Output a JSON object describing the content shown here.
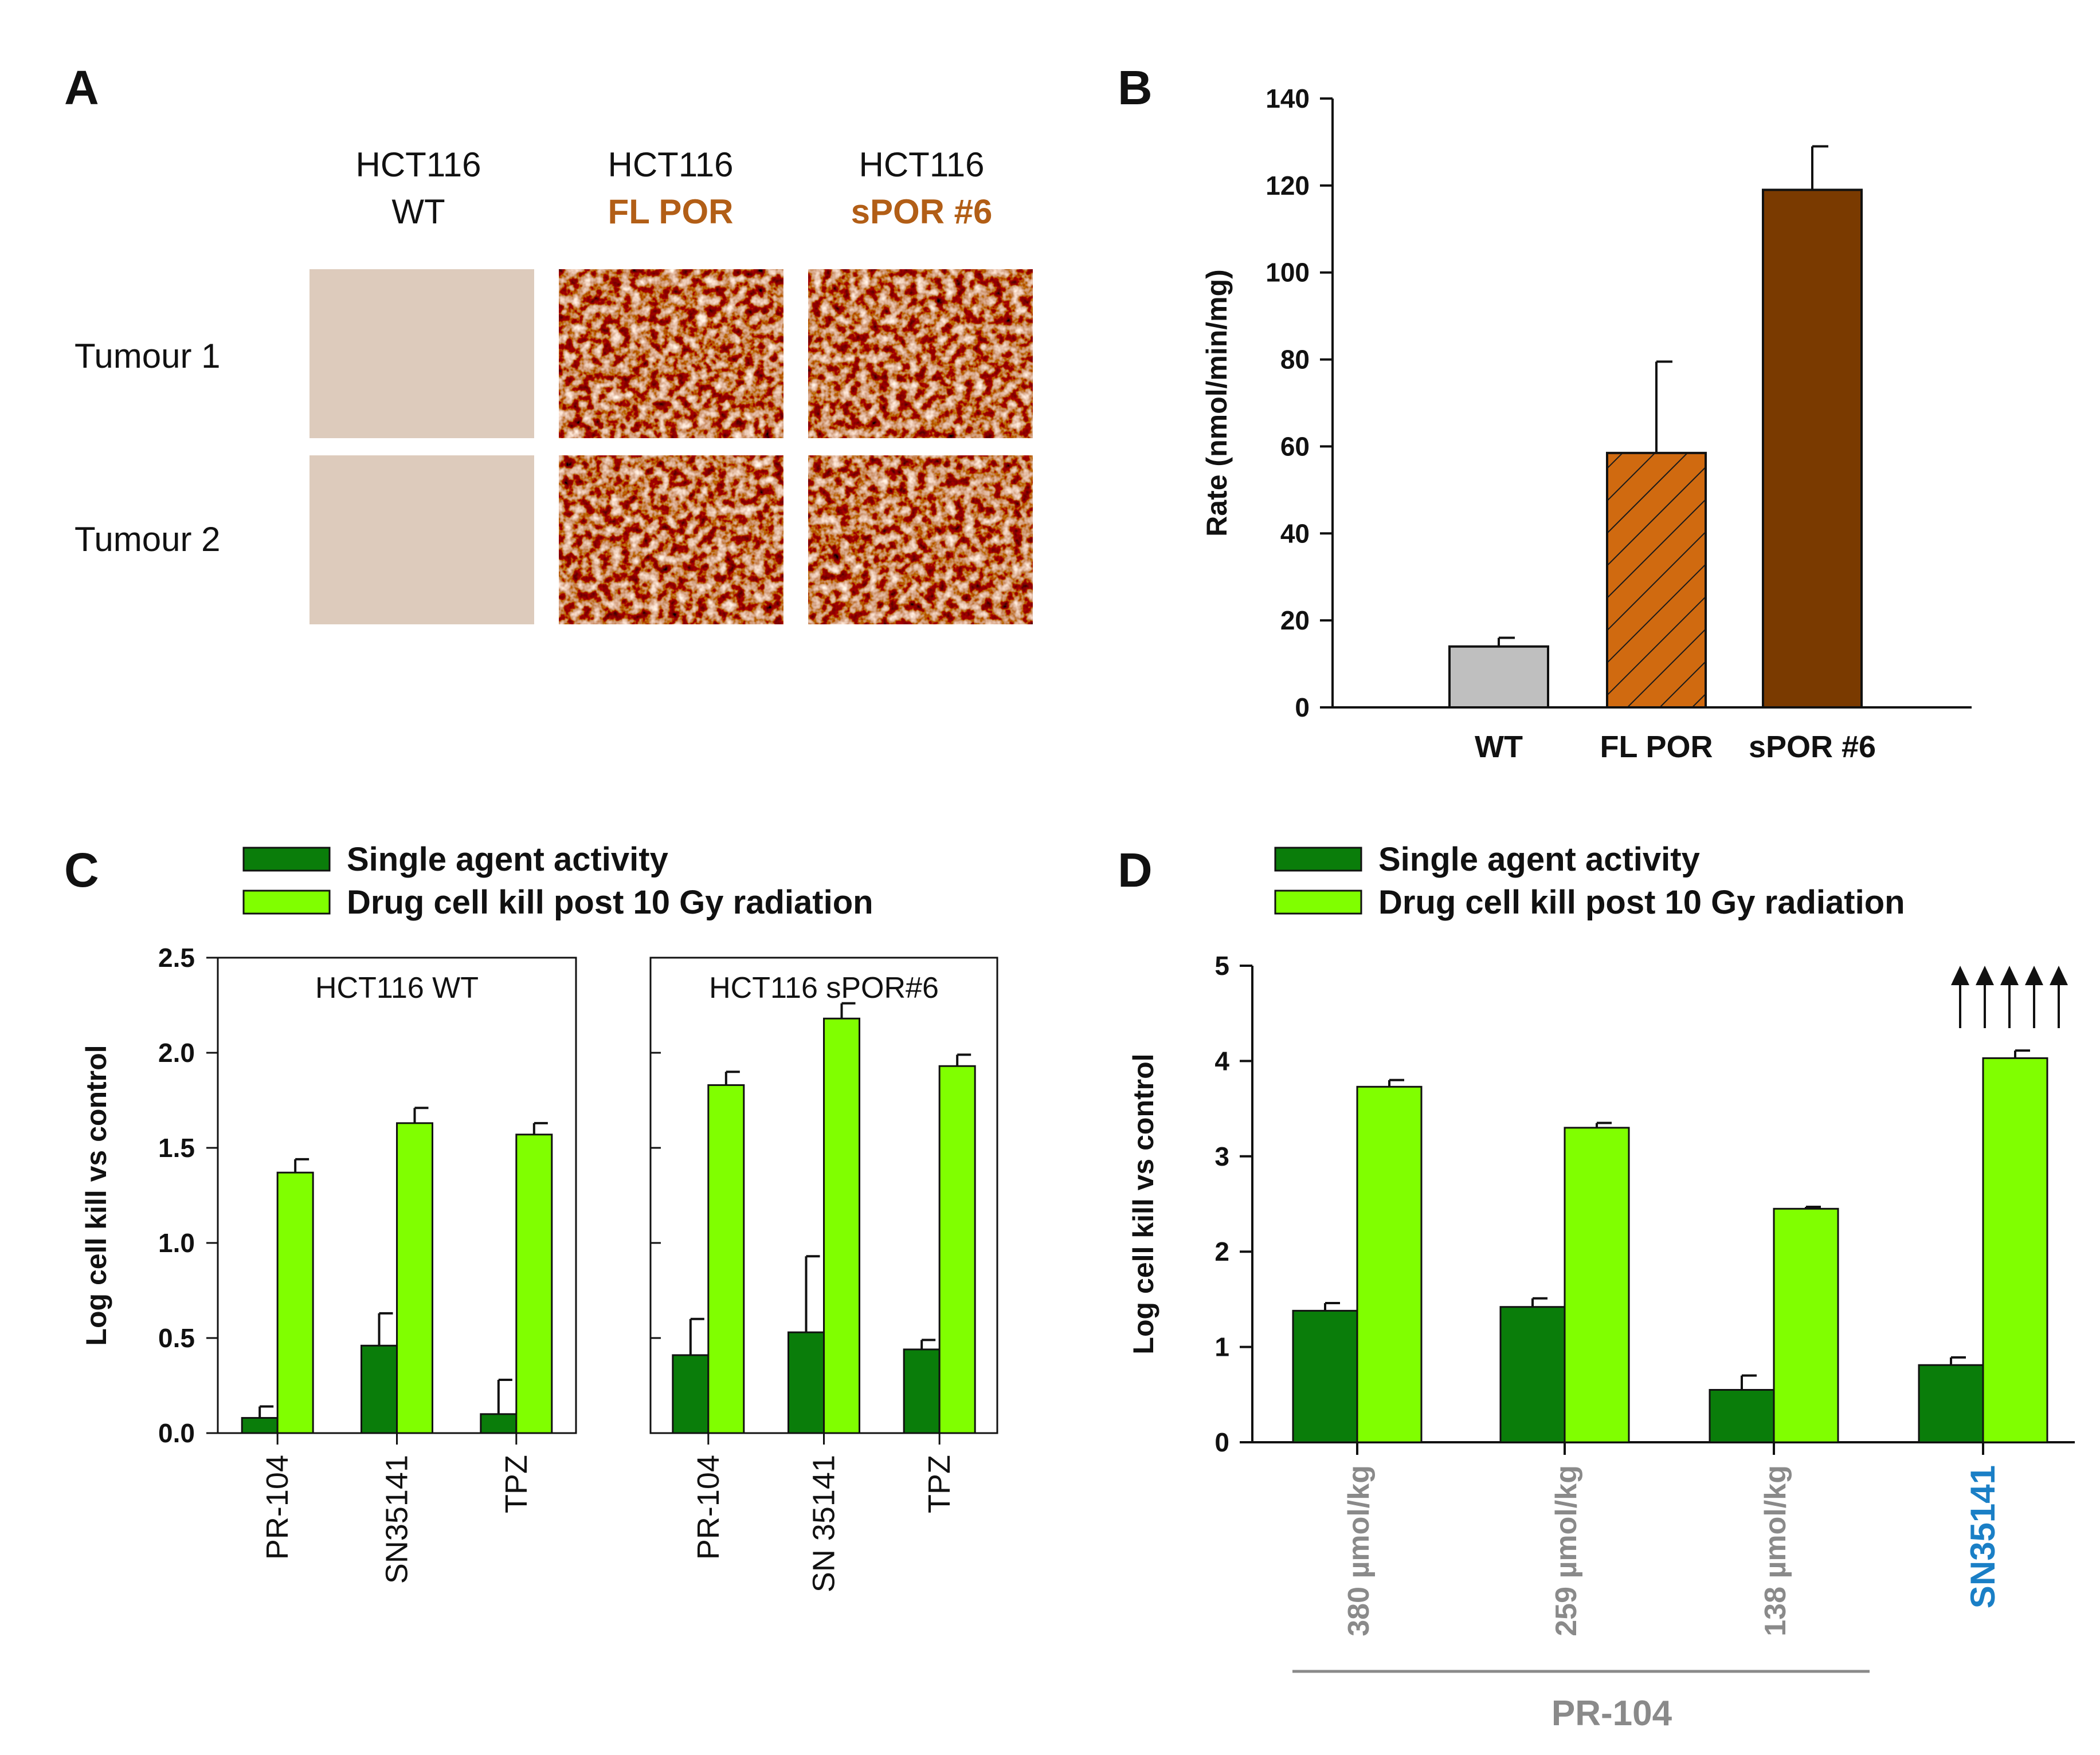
{
  "panel_letters": [
    "A",
    "B",
    "C",
    "D"
  ],
  "colors": {
    "dark_green": "#0a7d0a",
    "light_green": "#80ff00",
    "brown": "#b25e16",
    "dark_brown": "#7a3a00",
    "grey_bar": "#bfbfbf",
    "grey_text": "#8a8a8a",
    "blue_text": "#1a7fc6",
    "orange_bar": "#d06a10"
  },
  "panel_a": {
    "headers": [
      {
        "line1": "HCT116",
        "line2": "WT",
        "color": "#111111"
      },
      {
        "line1": "HCT116",
        "line2": "FL POR",
        "color": "#b25e16"
      },
      {
        "line1": "HCT116",
        "line2": "sPOR #6",
        "color": "#b25e16"
      }
    ],
    "rows": [
      "Tumour 1",
      "Tumour 2"
    ]
  },
  "chart_data": [
    {
      "panel": "B",
      "type": "bar",
      "categories": [
        "WT",
        "FL POR",
        "sPOR #6"
      ],
      "values": [
        14,
        58.5,
        119
      ],
      "errors": [
        2,
        21,
        10
      ],
      "ylabel": "Rate (nmol/min/mg)",
      "xlabel": "",
      "ylim": [
        0,
        140
      ],
      "yticks": [
        "0",
        "20",
        "40",
        "60",
        "80",
        "100",
        "120",
        "140"
      ]
    },
    {
      "panel": "C",
      "type": "bar",
      "ylabel": "Log cell kill vs control",
      "ylim": [
        0,
        2.5
      ],
      "yticks": [
        "0.0",
        "0.5",
        "1.0",
        "1.5",
        "2.0",
        "2.5"
      ],
      "legend": [
        "Single agent activity",
        "Drug cell kill post 10 Gy radiation"
      ],
      "subplots": [
        {
          "title": "HCT116 WT",
          "categories": [
            "PR-104",
            "SN35141",
            "TPZ"
          ],
          "series": [
            {
              "name": "Single agent activity",
              "values": [
                0.08,
                0.46,
                0.1
              ],
              "errors": [
                0.06,
                0.17,
                0.18
              ]
            },
            {
              "name": "Drug cell kill post 10 Gy radiation",
              "values": [
                1.37,
                1.63,
                1.57
              ],
              "errors": [
                0.07,
                0.08,
                0.06
              ]
            }
          ]
        },
        {
          "title": "HCT116 sPOR#6",
          "categories": [
            "PR-104",
            "SN 35141",
            "TPZ"
          ],
          "series": [
            {
              "name": "Single agent activity",
              "values": [
                0.41,
                0.53,
                0.44
              ],
              "errors": [
                0.19,
                0.4,
                0.05
              ]
            },
            {
              "name": "Drug cell kill post 10 Gy radiation",
              "values": [
                1.83,
                2.18,
                1.93
              ],
              "errors": [
                0.07,
                0.08,
                0.06
              ]
            }
          ]
        }
      ]
    },
    {
      "panel": "D",
      "type": "bar",
      "ylabel": "Log cell kill vs control",
      "ylim": [
        0,
        5
      ],
      "yticks": [
        "0",
        "1",
        "2",
        "3",
        "4",
        "5"
      ],
      "legend": [
        "Single agent activity",
        "Drug cell kill post 10 Gy radiation"
      ],
      "categories": [
        "380 µmol/kg",
        "259 µmol/kg",
        "138 µmol/kg",
        "SN35141"
      ],
      "group_label": "PR-104",
      "arrow_count": 5,
      "series": [
        {
          "name": "Single agent activity",
          "values": [
            1.38,
            1.42,
            0.55,
            0.81
          ],
          "errors": [
            0.08,
            0.09,
            0.15,
            0.08
          ]
        },
        {
          "name": "Drug cell kill post 10 Gy radiation",
          "values": [
            3.73,
            3.3,
            2.45,
            4.03
          ],
          "errors": [
            0.07,
            0.05,
            0.02,
            0.08
          ]
        }
      ]
    }
  ]
}
